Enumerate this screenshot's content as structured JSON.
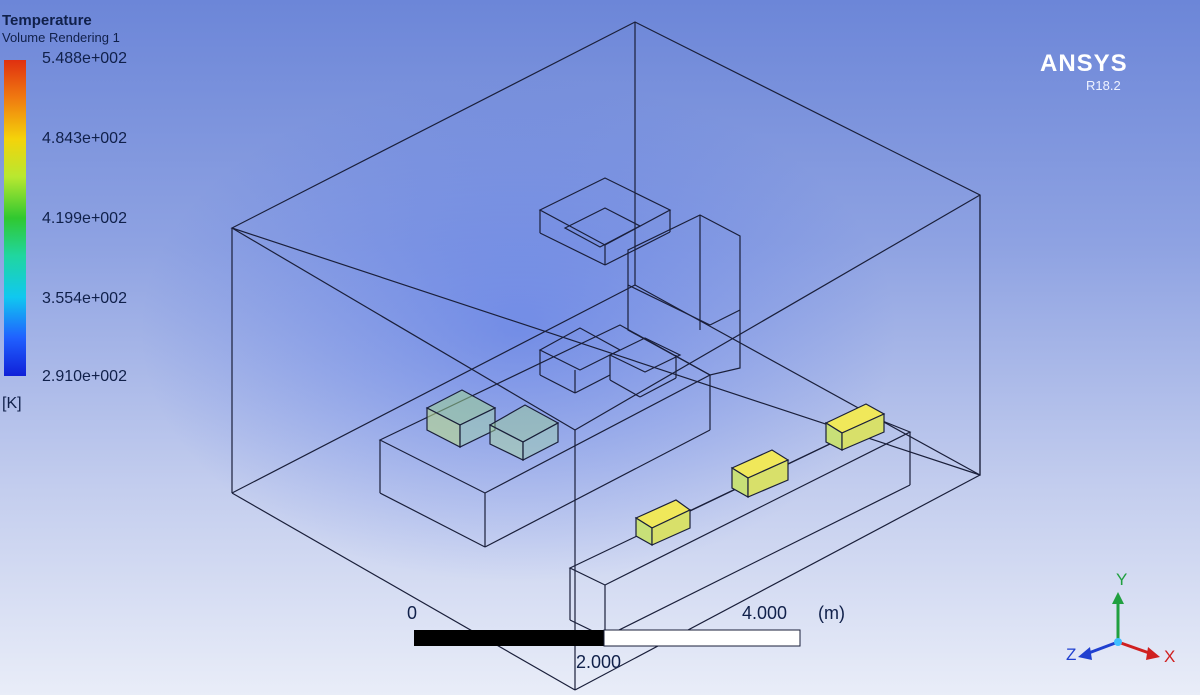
{
  "legend": {
    "title": "Temperature",
    "subtitle": "Volume Rendering 1",
    "ticks": [
      "5.488e+002",
      "4.843e+002",
      "4.199e+002",
      "3.554e+002",
      "2.910e+002"
    ],
    "unit": "[K]"
  },
  "branding": {
    "name": "ANSYS",
    "version": "R18.2"
  },
  "scale_bar": {
    "start": "0",
    "mid": "2.000",
    "end": "4.000",
    "unit": "(m)"
  },
  "axes": {
    "x": "X",
    "y": "Y",
    "z": "Z"
  },
  "colors": {
    "background_top": "#6c86d8",
    "background_bottom": "#e9edf8",
    "edge": "#1a1f3a",
    "hot_patch": "#e6e24a",
    "warm_patch": "#b7d88a",
    "axis_x": "#d02020",
    "axis_y": "#20a040",
    "axis_z": "#2040d0"
  }
}
